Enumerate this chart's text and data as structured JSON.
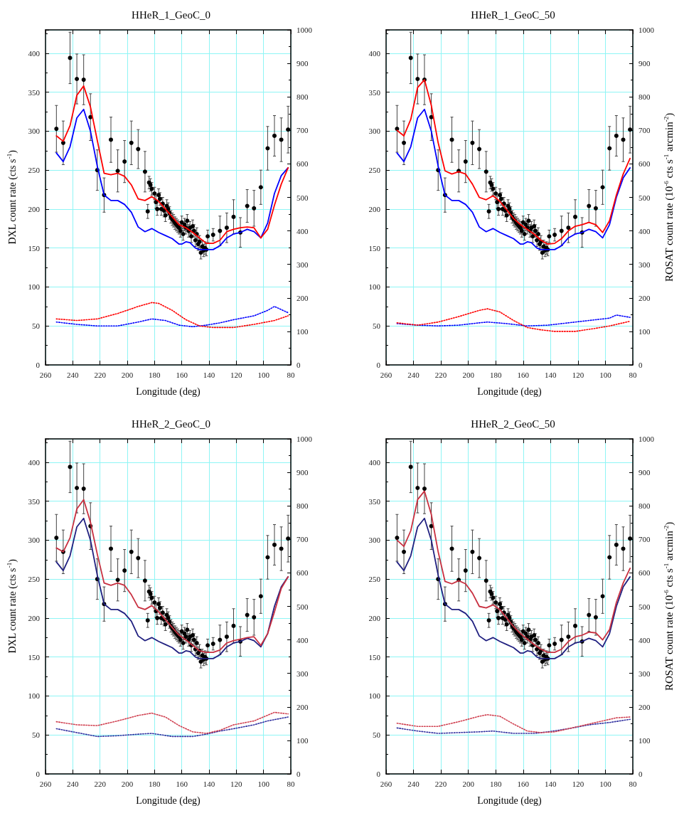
{
  "chart_data": [
    {
      "type": "line",
      "title": "HHeR_1_GeoC_0",
      "xlabel": "Longitude (deg)",
      "ylabel": "DXL count rate (cts s$^{-1}$)",
      "xlim": [
        260,
        80
      ],
      "xticks": [
        260,
        240,
        220,
        200,
        180,
        160,
        140,
        120,
        100,
        80
      ],
      "ylim": [
        0,
        430
      ],
      "yticks": [
        0,
        50,
        100,
        150,
        200,
        250,
        300,
        350,
        400
      ],
      "y2lim": [
        0,
        1000
      ],
      "y2ticks": [
        0,
        100,
        200,
        300,
        400,
        500,
        600,
        700,
        800,
        900,
        1000
      ],
      "grid": true,
      "series": [
        {
          "type": "line",
          "color": "#0000ff",
          "line_style": "dotted",
          "marker": "none",
          "x": [
            252,
            237,
            222,
            207,
            192,
            182,
            172,
            162,
            152,
            142,
            132,
            122,
            107,
            97,
            92,
            82
          ],
          "values": [
            55,
            52,
            50,
            50,
            55,
            59,
            57,
            51,
            49,
            51,
            54,
            58,
            63,
            70,
            75,
            67
          ]
        },
        {
          "type": "line",
          "color": "#ff0000",
          "line_style": "dotted",
          "marker": "none",
          "x": [
            252,
            237,
            222,
            207,
            192,
            182,
            177,
            167,
            157,
            147,
            137,
            122,
            107,
            92,
            82
          ],
          "values": [
            59,
            57,
            59,
            66,
            75,
            80,
            79,
            70,
            58,
            50,
            48,
            48,
            52,
            57,
            63
          ]
        },
        {
          "type": "line",
          "color": "#0000ff",
          "line_style": "solid",
          "marker": "none",
          "x": [
            252,
            247,
            242,
            237,
            232,
            227,
            222,
            217,
            212,
            207,
            202,
            197,
            192,
            187,
            182,
            177,
            172,
            167,
            162,
            160,
            157,
            154,
            150,
            147,
            142,
            137,
            132,
            127,
            122,
            117,
            112,
            107,
            102,
            97,
            92,
            87,
            82
          ],
          "values": [
            272,
            261,
            280,
            317,
            328,
            300,
            255,
            218,
            211,
            211,
            206,
            196,
            177,
            171,
            175,
            170,
            166,
            162,
            155,
            155,
            158,
            157,
            150,
            148,
            148,
            148,
            153,
            163,
            168,
            170,
            174,
            171,
            163,
            182,
            220,
            243,
            253
          ]
        },
        {
          "type": "line",
          "color": "#ff0000",
          "line_style": "solid",
          "marker": "none",
          "x": [
            252,
            247,
            242,
            237,
            232,
            227,
            222,
            217,
            212,
            207,
            202,
            197,
            192,
            187,
            182,
            177,
            172,
            167,
            162,
            157,
            152,
            147,
            142,
            137,
            132,
            127,
            122,
            117,
            112,
            107,
            102,
            97,
            92,
            87,
            82
          ],
          "values": [
            294,
            287,
            307,
            346,
            358,
            331,
            288,
            246,
            244,
            246,
            242,
            231,
            213,
            211,
            216,
            210,
            200,
            190,
            180,
            176,
            170,
            163,
            156,
            156,
            160,
            171,
            174,
            176,
            177,
            176,
            163,
            174,
            205,
            232,
            253
          ]
        },
        {
          "type": "scatter",
          "color": "#000000",
          "marker": "circle",
          "x": [
            252,
            247,
            242,
            237,
            232,
            227,
            222,
            217,
            212,
            207,
            202,
            197,
            192,
            187,
            185,
            184,
            183,
            182,
            180,
            179,
            178,
            177,
            176,
            175,
            174,
            173,
            172,
            171,
            170,
            169,
            168,
            167,
            166,
            165,
            164,
            163,
            162,
            161,
            160,
            159,
            158,
            157,
            156,
            155,
            154,
            153,
            152,
            151,
            150,
            149,
            148,
            147,
            146,
            145,
            144,
            143,
            142,
            141,
            137,
            132,
            127,
            122,
            117,
            112,
            107,
            102,
            97,
            92,
            87,
            82
          ],
          "values": [
            303,
            285,
            394,
            367,
            366,
            318,
            250,
            218,
            289,
            249,
            261,
            285,
            277,
            248,
            197,
            234,
            231,
            226,
            220,
            209,
            200,
            218,
            213,
            200,
            207,
            198,
            192,
            204,
            200,
            195,
            190,
            187,
            185,
            182,
            180,
            178,
            176,
            172,
            183,
            168,
            180,
            176,
            185,
            172,
            176,
            165,
            178,
            172,
            160,
            168,
            155,
            158,
            144,
            152,
            147,
            150,
            148,
            165,
            167,
            172,
            176,
            190,
            170,
            204,
            201,
            228,
            278,
            294,
            289,
            302
          ],
          "errors": [
            30,
            28,
            33,
            32,
            32,
            30,
            26,
            22,
            29,
            27,
            27,
            28,
            25,
            26,
            9,
            8,
            8,
            8,
            8,
            8,
            8,
            8,
            8,
            8,
            8,
            8,
            8,
            8,
            8,
            8,
            8,
            8,
            8,
            8,
            8,
            8,
            8,
            8,
            8,
            8,
            8,
            8,
            8,
            8,
            8,
            8,
            8,
            8,
            8,
            8,
            8,
            8,
            8,
            8,
            8,
            8,
            8,
            8,
            8,
            19,
            19,
            22,
            19,
            21,
            23,
            22,
            28,
            26,
            28,
            30
          ]
        }
      ]
    },
    {
      "type": "line",
      "title": "HHeR_1_GeoC_50",
      "xlabel": "Longitude (deg)",
      "y2label": "ROSAT count rate (10$^{-6}$ cts s$^{-1}$ arcmin$^{-2}$)",
      "xlim": [
        260,
        80
      ],
      "xticks": [
        260,
        240,
        220,
        200,
        180,
        160,
        140,
        120,
        100,
        80
      ],
      "ylim": [
        0,
        430
      ],
      "yticks": [
        0,
        50,
        100,
        150,
        200,
        250,
        300,
        350,
        400
      ],
      "y2lim": [
        0,
        1000
      ],
      "y2ticks": [
        0,
        100,
        200,
        300,
        400,
        500,
        600,
        700,
        800,
        900,
        1000
      ],
      "grid": true,
      "series": [
        {
          "type": "line",
          "color": "#0000ff",
          "line_style": "dotted",
          "marker": "none",
          "x": [
            252,
            237,
            222,
            207,
            192,
            186,
            172,
            157,
            142,
            122,
            107,
            97,
            92,
            82
          ],
          "values": [
            53,
            51,
            50,
            51,
            54,
            55,
            53,
            50,
            51,
            55,
            58,
            60,
            64,
            61
          ]
        },
        {
          "type": "line",
          "color": "#ff0000",
          "line_style": "dotted",
          "marker": "none",
          "x": [
            252,
            237,
            222,
            207,
            192,
            186,
            177,
            167,
            157,
            147,
            137,
            122,
            107,
            97,
            82
          ],
          "values": [
            54,
            51,
            55,
            62,
            70,
            72,
            68,
            57,
            48,
            45,
            43,
            43,
            47,
            50,
            56
          ]
        },
        {
          "type": "line",
          "color": "#0000ff",
          "line_style": "solid",
          "marker": "none",
          "x": [
            252,
            247,
            242,
            237,
            232,
            227,
            222,
            217,
            212,
            207,
            202,
            197,
            192,
            187,
            182,
            177,
            172,
            167,
            162,
            160,
            157,
            154,
            150,
            147,
            142,
            137,
            132,
            127,
            122,
            117,
            112,
            107,
            102,
            97,
            92,
            87,
            82
          ],
          "values": [
            272,
            261,
            280,
            317,
            328,
            300,
            255,
            218,
            211,
            211,
            206,
            196,
            177,
            171,
            175,
            170,
            166,
            162,
            155,
            155,
            158,
            157,
            150,
            148,
            148,
            148,
            153,
            163,
            168,
            170,
            174,
            171,
            163,
            180,
            215,
            240,
            253
          ]
        },
        {
          "type": "line",
          "color": "#ff0000",
          "line_style": "solid",
          "marker": "none",
          "x": [
            252,
            247,
            242,
            237,
            232,
            227,
            222,
            217,
            212,
            207,
            202,
            197,
            192,
            187,
            182,
            177,
            172,
            167,
            162,
            157,
            152,
            147,
            142,
            137,
            132,
            127,
            122,
            117,
            112,
            107,
            102,
            97,
            92,
            87,
            82
          ],
          "values": [
            301,
            294,
            315,
            356,
            366,
            333,
            285,
            249,
            245,
            248,
            245,
            232,
            215,
            212,
            217,
            210,
            199,
            188,
            180,
            174,
            168,
            160,
            155,
            156,
            162,
            172,
            178,
            180,
            183,
            180,
            170,
            185,
            218,
            245,
            265
          ]
        },
        {
          "type": "scatter",
          "color": "#000000",
          "marker": "circle",
          "x": [
            252,
            247,
            242,
            237,
            232,
            227,
            222,
            217,
            212,
            207,
            202,
            197,
            192,
            187,
            185,
            184,
            183,
            182,
            180,
            179,
            178,
            177,
            176,
            175,
            174,
            173,
            172,
            171,
            170,
            169,
            168,
            167,
            166,
            165,
            164,
            163,
            162,
            161,
            160,
            159,
            158,
            157,
            156,
            155,
            154,
            153,
            152,
            151,
            150,
            149,
            148,
            147,
            146,
            145,
            144,
            143,
            142,
            141,
            137,
            132,
            127,
            122,
            117,
            112,
            107,
            102,
            97,
            92,
            87,
            82
          ],
          "values": [
            303,
            285,
            394,
            367,
            366,
            318,
            250,
            218,
            289,
            249,
            261,
            285,
            277,
            248,
            197,
            234,
            231,
            226,
            220,
            209,
            200,
            218,
            213,
            200,
            207,
            198,
            192,
            204,
            200,
            195,
            190,
            187,
            185,
            182,
            180,
            178,
            176,
            172,
            183,
            168,
            180,
            176,
            185,
            172,
            176,
            165,
            178,
            172,
            160,
            168,
            155,
            158,
            144,
            152,
            147,
            150,
            148,
            165,
            167,
            172,
            176,
            190,
            170,
            204,
            201,
            228,
            278,
            294,
            289,
            302
          ],
          "errors": [
            30,
            28,
            33,
            32,
            32,
            30,
            26,
            22,
            29,
            27,
            27,
            28,
            25,
            26,
            9,
            8,
            8,
            8,
            8,
            8,
            8,
            8,
            8,
            8,
            8,
            8,
            8,
            8,
            8,
            8,
            8,
            8,
            8,
            8,
            8,
            8,
            8,
            8,
            8,
            8,
            8,
            8,
            8,
            8,
            8,
            8,
            8,
            8,
            8,
            8,
            8,
            8,
            8,
            8,
            8,
            8,
            8,
            8,
            8,
            19,
            19,
            22,
            19,
            21,
            23,
            22,
            28,
            26,
            28,
            30
          ]
        }
      ]
    },
    {
      "type": "line",
      "title": "HHeR_2_GeoC_0",
      "xlabel": "Longitude (deg)",
      "ylabel": "DXL count rate (cts s$^{-1}$)",
      "xlim": [
        260,
        80
      ],
      "xticks": [
        260,
        240,
        220,
        200,
        180,
        160,
        140,
        120,
        100,
        80
      ],
      "ylim": [
        0,
        430
      ],
      "yticks": [
        0,
        50,
        100,
        150,
        200,
        250,
        300,
        350,
        400
      ],
      "y2lim": [
        0,
        1000
      ],
      "y2ticks": [
        0,
        100,
        200,
        300,
        400,
        500,
        600,
        700,
        800,
        900,
        1000
      ],
      "grid": true,
      "series": [
        {
          "type": "line",
          "color": "#3030a0",
          "line_style": "dotted",
          "marker": "none",
          "x": [
            252,
            237,
            222,
            207,
            192,
            182,
            167,
            152,
            142,
            132,
            122,
            107,
            97,
            82
          ],
          "values": [
            58,
            53,
            48,
            49,
            51,
            52,
            48,
            48,
            51,
            55,
            58,
            63,
            68,
            73
          ]
        },
        {
          "type": "line",
          "color": "#d04050",
          "line_style": "dotted",
          "marker": "none",
          "x": [
            252,
            237,
            222,
            207,
            192,
            182,
            172,
            162,
            152,
            142,
            132,
            122,
            107,
            92,
            82
          ],
          "values": [
            67,
            63,
            62,
            68,
            75,
            78,
            73,
            62,
            54,
            52,
            56,
            63,
            68,
            79,
            77
          ]
        },
        {
          "type": "line",
          "color": "#202080",
          "line_style": "solid",
          "marker": "none",
          "x": [
            252,
            247,
            242,
            237,
            232,
            227,
            222,
            217,
            212,
            207,
            202,
            197,
            192,
            187,
            182,
            177,
            172,
            167,
            162,
            160,
            157,
            154,
            150,
            147,
            142,
            137,
            132,
            127,
            122,
            117,
            112,
            107,
            102,
            97,
            92,
            87,
            82
          ],
          "values": [
            272,
            261,
            280,
            317,
            328,
            300,
            255,
            218,
            211,
            211,
            206,
            196,
            177,
            171,
            175,
            170,
            166,
            162,
            155,
            155,
            158,
            157,
            150,
            148,
            148,
            148,
            153,
            163,
            168,
            170,
            174,
            171,
            163,
            180,
            215,
            240,
            253
          ]
        },
        {
          "type": "line",
          "color": "#c83040",
          "line_style": "solid",
          "marker": "none",
          "x": [
            252,
            247,
            242,
            237,
            232,
            227,
            222,
            217,
            212,
            207,
            202,
            197,
            192,
            187,
            182,
            177,
            172,
            167,
            162,
            157,
            152,
            147,
            142,
            137,
            132,
            127,
            122,
            117,
            112,
            107,
            102,
            97,
            92,
            87,
            82
          ],
          "values": [
            290,
            285,
            303,
            340,
            352,
            323,
            282,
            245,
            242,
            245,
            242,
            230,
            214,
            211,
            216,
            208,
            198,
            188,
            178,
            172,
            165,
            158,
            156,
            156,
            159,
            168,
            171,
            173,
            175,
            176,
            165,
            180,
            208,
            238,
            253
          ]
        },
        {
          "type": "scatter",
          "color": "#000000",
          "marker": "circle",
          "x": [
            252,
            247,
            242,
            237,
            232,
            227,
            222,
            217,
            212,
            207,
            202,
            197,
            192,
            187,
            185,
            184,
            183,
            182,
            180,
            179,
            178,
            177,
            176,
            175,
            174,
            173,
            172,
            171,
            170,
            169,
            168,
            167,
            166,
            165,
            164,
            163,
            162,
            161,
            160,
            159,
            158,
            157,
            156,
            155,
            154,
            153,
            152,
            151,
            150,
            149,
            148,
            147,
            146,
            145,
            144,
            143,
            142,
            141,
            137,
            132,
            127,
            122,
            117,
            112,
            107,
            102,
            97,
            92,
            87,
            82
          ],
          "values": [
            303,
            285,
            394,
            367,
            366,
            318,
            250,
            218,
            289,
            249,
            261,
            285,
            277,
            248,
            197,
            234,
            231,
            226,
            220,
            209,
            200,
            218,
            213,
            200,
            207,
            198,
            192,
            204,
            200,
            195,
            190,
            187,
            185,
            182,
            180,
            178,
            176,
            172,
            183,
            168,
            180,
            176,
            185,
            172,
            176,
            165,
            178,
            172,
            160,
            168,
            155,
            158,
            144,
            152,
            147,
            150,
            148,
            165,
            167,
            172,
            176,
            190,
            170,
            204,
            201,
            228,
            278,
            294,
            289,
            302
          ],
          "errors": [
            30,
            28,
            33,
            32,
            32,
            30,
            26,
            22,
            29,
            27,
            27,
            28,
            25,
            26,
            9,
            8,
            8,
            8,
            8,
            8,
            8,
            8,
            8,
            8,
            8,
            8,
            8,
            8,
            8,
            8,
            8,
            8,
            8,
            8,
            8,
            8,
            8,
            8,
            8,
            8,
            8,
            8,
            8,
            8,
            8,
            8,
            8,
            8,
            8,
            8,
            8,
            8,
            8,
            8,
            8,
            8,
            8,
            8,
            8,
            19,
            19,
            22,
            19,
            21,
            23,
            22,
            28,
            26,
            28,
            30
          ]
        }
      ]
    },
    {
      "type": "line",
      "title": "HHeR_2_GeoC_50",
      "xlabel": "Longitude (deg)",
      "y2label": "ROSAT count rate (10$^{-6}$ cts s$^{-1}$ arcmin$^{-2}$)",
      "xlim": [
        260,
        80
      ],
      "xticks": [
        260,
        240,
        220,
        200,
        180,
        160,
        140,
        120,
        100,
        80
      ],
      "ylim": [
        0,
        430
      ],
      "yticks": [
        0,
        50,
        100,
        150,
        200,
        250,
        300,
        350,
        400
      ],
      "y2lim": [
        0,
        1000
      ],
      "y2ticks": [
        0,
        100,
        200,
        300,
        400,
        500,
        600,
        700,
        800,
        900,
        1000
      ],
      "grid": true,
      "series": [
        {
          "type": "line",
          "color": "#3030a0",
          "line_style": "dotted",
          "marker": "none",
          "x": [
            252,
            237,
            222,
            207,
            192,
            182,
            167,
            152,
            142,
            127,
            112,
            97,
            82
          ],
          "values": [
            59,
            55,
            52,
            53,
            54,
            55,
            52,
            52,
            54,
            58,
            63,
            66,
            70
          ]
        },
        {
          "type": "line",
          "color": "#d04050",
          "line_style": "dotted",
          "marker": "none",
          "x": [
            252,
            237,
            222,
            207,
            192,
            186,
            177,
            167,
            157,
            147,
            137,
            122,
            107,
            92,
            82
          ],
          "values": [
            65,
            61,
            61,
            67,
            74,
            76,
            74,
            64,
            55,
            53,
            54,
            60,
            66,
            72,
            73
          ]
        },
        {
          "type": "line",
          "color": "#202080",
          "line_style": "solid",
          "marker": "none",
          "x": [
            252,
            247,
            242,
            237,
            232,
            227,
            222,
            217,
            212,
            207,
            202,
            197,
            192,
            187,
            182,
            177,
            172,
            167,
            162,
            160,
            157,
            154,
            150,
            147,
            142,
            137,
            132,
            127,
            122,
            117,
            112,
            107,
            102,
            97,
            92,
            87,
            82
          ],
          "values": [
            272,
            261,
            280,
            317,
            328,
            300,
            255,
            218,
            211,
            211,
            206,
            196,
            177,
            171,
            175,
            170,
            166,
            162,
            155,
            155,
            158,
            157,
            150,
            148,
            148,
            148,
            153,
            163,
            168,
            170,
            174,
            171,
            163,
            180,
            215,
            240,
            253
          ]
        },
        {
          "type": "line",
          "color": "#c83040",
          "line_style": "solid",
          "marker": "none",
          "x": [
            252,
            247,
            242,
            237,
            232,
            227,
            222,
            217,
            212,
            207,
            202,
            197,
            192,
            187,
            182,
            177,
            172,
            167,
            162,
            157,
            152,
            147,
            142,
            137,
            132,
            127,
            122,
            117,
            112,
            107,
            102,
            97,
            92,
            87,
            82
          ],
          "values": [
            300,
            292,
            312,
            352,
            363,
            333,
            285,
            247,
            244,
            248,
            244,
            232,
            215,
            213,
            217,
            211,
            200,
            189,
            180,
            173,
            166,
            160,
            156,
            156,
            160,
            170,
            176,
            178,
            182,
            181,
            172,
            185,
            220,
            245,
            264
          ]
        },
        {
          "type": "scatter",
          "color": "#000000",
          "marker": "circle",
          "x": [
            252,
            247,
            242,
            237,
            232,
            227,
            222,
            217,
            212,
            207,
            202,
            197,
            192,
            187,
            185,
            184,
            183,
            182,
            180,
            179,
            178,
            177,
            176,
            175,
            174,
            173,
            172,
            171,
            170,
            169,
            168,
            167,
            166,
            165,
            164,
            163,
            162,
            161,
            160,
            159,
            158,
            157,
            156,
            155,
            154,
            153,
            152,
            151,
            150,
            149,
            148,
            147,
            146,
            145,
            144,
            143,
            142,
            141,
            137,
            132,
            127,
            122,
            117,
            112,
            107,
            102,
            97,
            92,
            87,
            82
          ],
          "values": [
            303,
            285,
            394,
            367,
            366,
            318,
            250,
            218,
            289,
            249,
            261,
            285,
            277,
            248,
            197,
            234,
            231,
            226,
            220,
            209,
            200,
            218,
            213,
            200,
            207,
            198,
            192,
            204,
            200,
            195,
            190,
            187,
            185,
            182,
            180,
            178,
            176,
            172,
            183,
            168,
            180,
            176,
            185,
            172,
            176,
            165,
            178,
            172,
            160,
            168,
            155,
            158,
            144,
            152,
            147,
            150,
            148,
            165,
            167,
            172,
            176,
            190,
            170,
            204,
            201,
            228,
            278,
            294,
            289,
            302
          ],
          "errors": [
            30,
            28,
            33,
            32,
            32,
            30,
            26,
            22,
            29,
            27,
            27,
            28,
            25,
            26,
            9,
            8,
            8,
            8,
            8,
            8,
            8,
            8,
            8,
            8,
            8,
            8,
            8,
            8,
            8,
            8,
            8,
            8,
            8,
            8,
            8,
            8,
            8,
            8,
            8,
            8,
            8,
            8,
            8,
            8,
            8,
            8,
            8,
            8,
            8,
            8,
            8,
            8,
            8,
            8,
            8,
            8,
            8,
            8,
            8,
            19,
            19,
            22,
            19,
            21,
            23,
            22,
            28,
            26,
            28,
            30
          ]
        }
      ]
    }
  ]
}
